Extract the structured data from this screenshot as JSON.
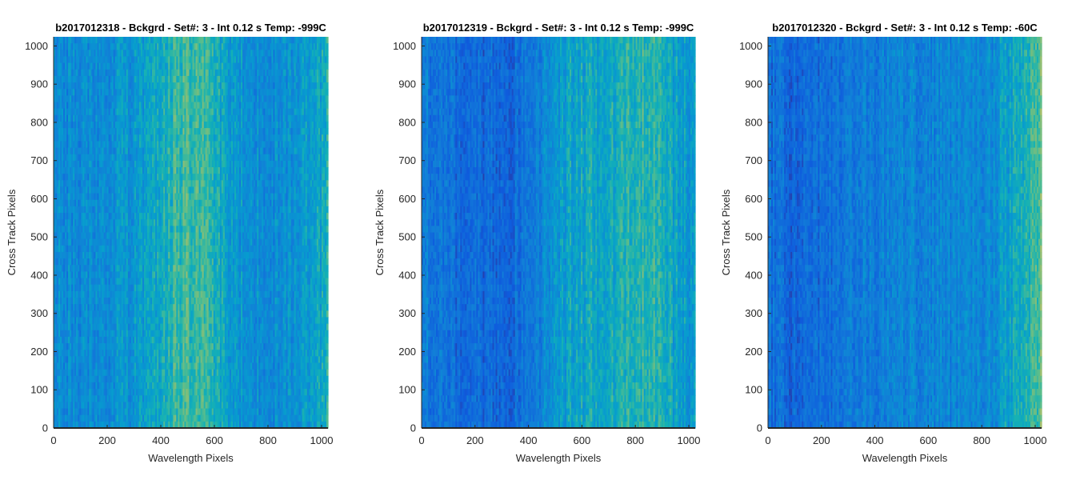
{
  "chart_data": [
    {
      "type": "heatmap",
      "title": "b2017012318 - Bckgrd - Set#: 3 - Int 0.12 s Temp: -999C",
      "xlabel": "Wavelength Pixels",
      "ylabel": "Cross Track Pixels",
      "xlim": [
        0,
        1024
      ],
      "ylim": [
        0,
        1024
      ],
      "xticks": [
        0,
        200,
        400,
        600,
        800,
        1000
      ],
      "yticks": [
        0,
        100,
        200,
        300,
        400,
        500,
        600,
        700,
        800,
        900,
        1000
      ],
      "colormap": "parula",
      "column_profile": {
        "x": [
          0,
          150,
          300,
          420,
          500,
          580,
          650,
          750,
          850,
          950,
          1024
        ],
        "level": [
          0.38,
          0.36,
          0.42,
          0.55,
          0.62,
          0.58,
          0.45,
          0.38,
          0.36,
          0.45,
          0.52
        ]
      }
    },
    {
      "type": "heatmap",
      "title": "b2017012319 - Bckgrd - Set#: 3 - Int 0.12 s Temp: -999C",
      "xlabel": "Wavelength Pixels",
      "ylabel": "Cross Track Pixels",
      "xlim": [
        0,
        1024
      ],
      "ylim": [
        0,
        1024
      ],
      "xticks": [
        0,
        200,
        400,
        600,
        800,
        1000
      ],
      "yticks": [
        0,
        100,
        200,
        300,
        400,
        500,
        600,
        700,
        800,
        900,
        1000
      ],
      "colormap": "parula",
      "column_profile": {
        "x": [
          0,
          100,
          250,
          380,
          480,
          580,
          700,
          800,
          870,
          950,
          1024
        ],
        "level": [
          0.32,
          0.24,
          0.2,
          0.24,
          0.38,
          0.5,
          0.5,
          0.56,
          0.6,
          0.48,
          0.42
        ]
      }
    },
    {
      "type": "heatmap",
      "title": "b2017012320 - Bckgrd - Set#: 3 - Int 0.12 s Temp: -60C",
      "xlabel": "Wavelength Pixels",
      "ylabel": "Cross Track Pixels",
      "xlim": [
        0,
        1024
      ],
      "ylim": [
        0,
        1024
      ],
      "xticks": [
        0,
        200,
        400,
        600,
        800,
        1000
      ],
      "yticks": [
        0,
        100,
        200,
        300,
        400,
        500,
        600,
        700,
        800,
        900,
        1000
      ],
      "colormap": "parula",
      "column_profile": {
        "x": [
          0,
          80,
          200,
          350,
          500,
          650,
          800,
          900,
          1000,
          1024
        ],
        "level": [
          0.25,
          0.2,
          0.24,
          0.3,
          0.34,
          0.34,
          0.36,
          0.46,
          0.6,
          0.64
        ]
      }
    }
  ]
}
